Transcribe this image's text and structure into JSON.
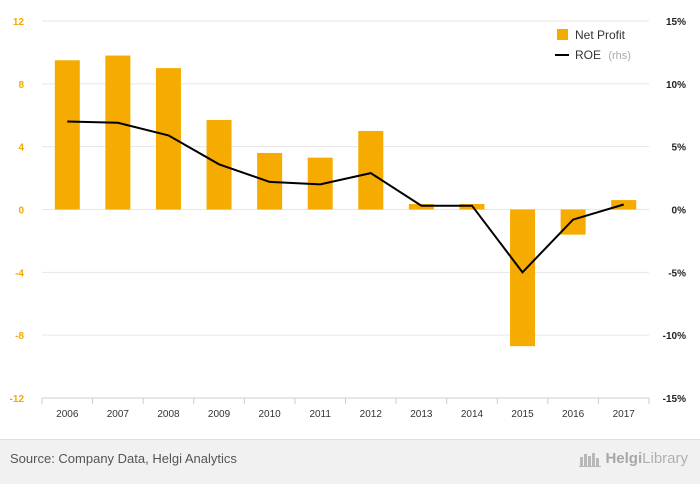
{
  "chart_data": {
    "type": "bar",
    "categories": [
      "2006",
      "2007",
      "2008",
      "2009",
      "2010",
      "2011",
      "2012",
      "2013",
      "2014",
      "2015",
      "2016",
      "2017"
    ],
    "series": [
      {
        "name": "Net Profit",
        "type": "bar",
        "axis": "left",
        "color": "#f5ab00",
        "values": [
          9.5,
          9.8,
          9.0,
          5.7,
          3.6,
          3.3,
          5.0,
          0.35,
          0.35,
          -8.7,
          -1.6,
          0.6
        ]
      },
      {
        "name": "ROE",
        "legend_suffix": "(rhs)",
        "type": "line",
        "axis": "right",
        "color": "#000000",
        "values": [
          7.0,
          6.9,
          5.9,
          3.6,
          2.2,
          2.0,
          2.9,
          0.3,
          0.3,
          -5.0,
          -0.8,
          0.4
        ]
      }
    ],
    "y_left": {
      "min": -12,
      "max": 12,
      "ticks": [
        "12",
        "8",
        "4",
        "0",
        "-4",
        "-8",
        "-12"
      ]
    },
    "y_right": {
      "min": -15,
      "max": 15,
      "ticks": [
        "15%",
        "10%",
        "5%",
        "0%",
        "-5%",
        "-10%",
        "-15%"
      ]
    },
    "grid": true,
    "legend_position": "top-right"
  },
  "footer": {
    "source": "Source: Company Data, Helgi Analytics",
    "brand_main": "Helgi",
    "brand_sub": "Library"
  }
}
